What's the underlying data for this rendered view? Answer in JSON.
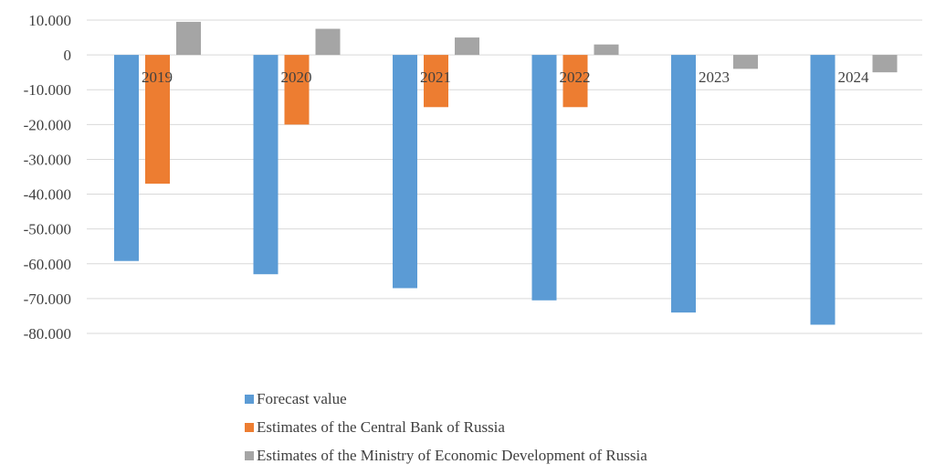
{
  "chart_data": {
    "type": "bar",
    "categories": [
      "2019",
      "2020",
      "2021",
      "2022",
      "2023",
      "2024"
    ],
    "series": [
      {
        "name": "Forecast value",
        "color": "#5B9BD5",
        "values": [
          -59200,
          -63000,
          -67000,
          -70500,
          -74000,
          -77500
        ]
      },
      {
        "name": "Estimates of the Central Bank of Russia",
        "color": "#ED7D31",
        "values": [
          -37000,
          -20000,
          -15000,
          -15000,
          null,
          null
        ]
      },
      {
        "name": "Estimates of the Ministry of Economic Development of Russia",
        "color": "#A5A5A5",
        "values": [
          9500,
          7500,
          5000,
          3000,
          -4000,
          -5000
        ]
      }
    ],
    "ylim": [
      -80000,
      10000
    ],
    "yticks": [
      10000,
      0,
      -10000,
      -20000,
      -30000,
      -40000,
      -50000,
      -60000,
      -70000,
      -80000
    ],
    "ytick_labels": [
      "10.000",
      "0",
      "-10.000",
      "-20.000",
      "-30.000",
      "-40.000",
      "-50.000",
      "-60.000",
      "-70.000",
      "-80.000"
    ],
    "grid": true,
    "legend_position": "bottom",
    "title": "",
    "xlabel": "",
    "ylabel": ""
  }
}
